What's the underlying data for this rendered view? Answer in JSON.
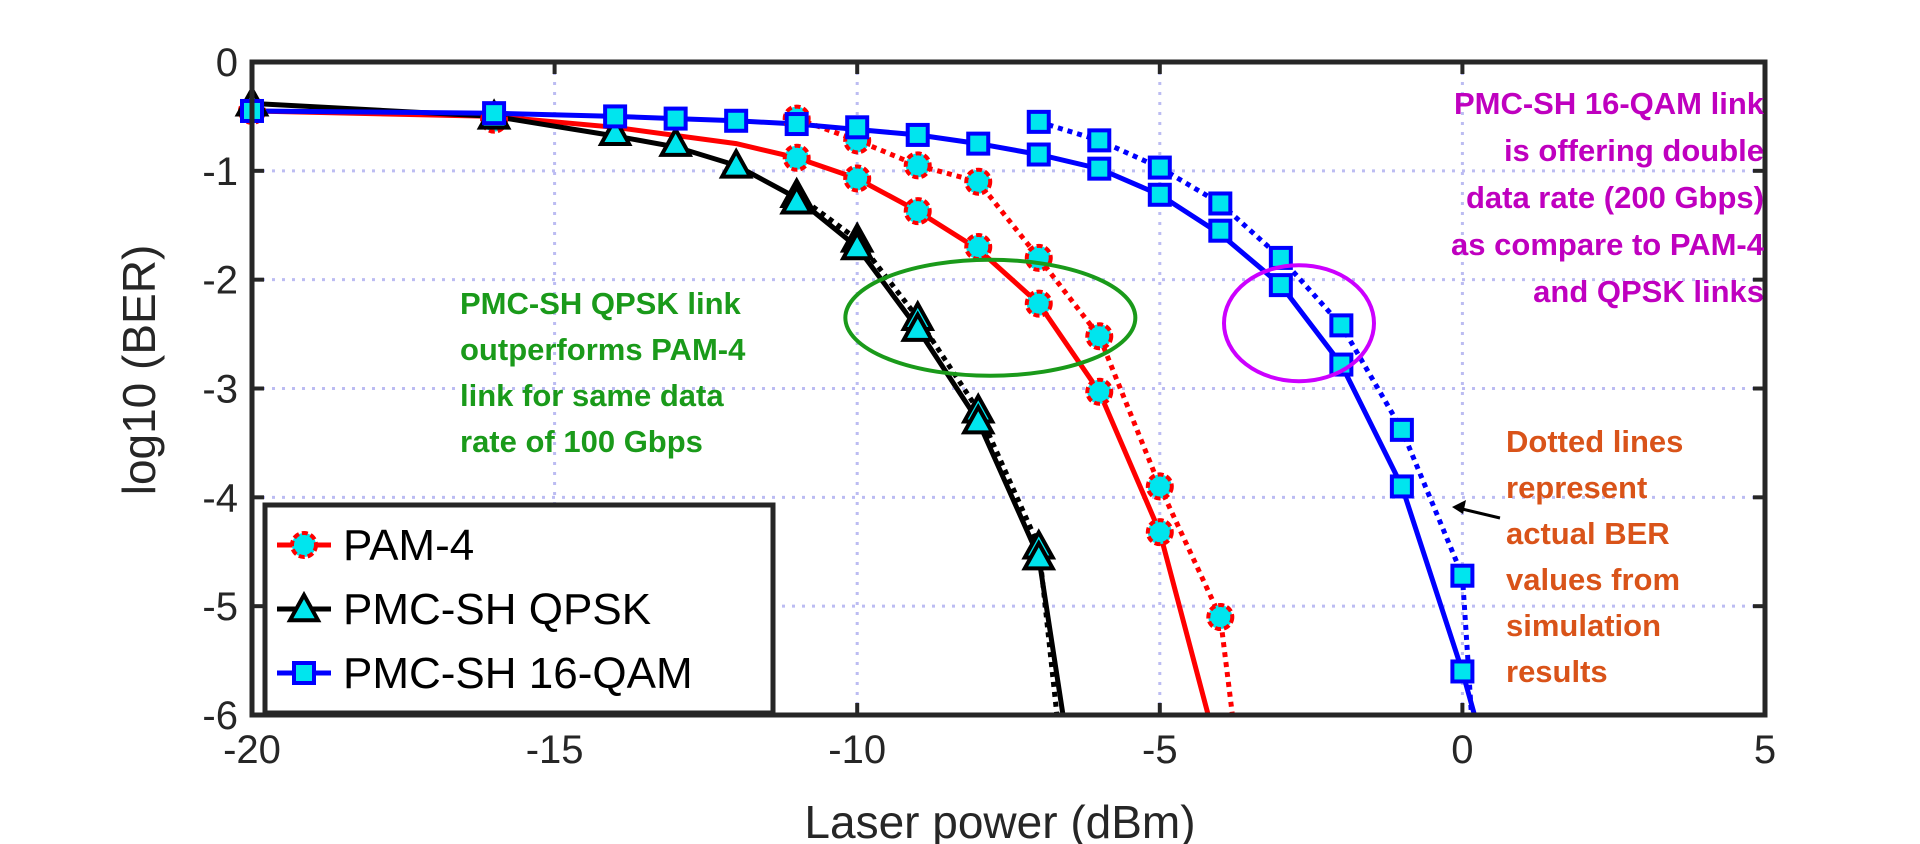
{
  "chart_data": {
    "type": "line",
    "xlabel": "Laser power (dBm)",
    "ylabel": "log10 (BER)",
    "xlim": [
      -20,
      5
    ],
    "ylim": [
      -6,
      0
    ],
    "xticks": [
      -20,
      -15,
      -10,
      -5,
      0,
      5
    ],
    "xtick_labels": [
      "-20",
      "-15",
      "-10",
      "-5",
      "0",
      "5"
    ],
    "yticks": [
      0,
      -1,
      -2,
      -3,
      -4,
      -5,
      -6
    ],
    "ytick_labels": [
      "0",
      "-1",
      "-2",
      "-3",
      "-4",
      "-5",
      "-6"
    ],
    "grid": true,
    "legend_position": "bottom-left",
    "series": [
      {
        "name": "PAM-4",
        "color": "#ff0000",
        "marker": "circle",
        "marker_fill": "#00e5ee",
        "fit": {
          "x": [
            -20,
            -16,
            -14,
            -12,
            -11,
            -10,
            -9,
            -8,
            -7,
            -6,
            -5,
            -4.2
          ],
          "y": [
            -0.45,
            -0.5,
            -0.6,
            -0.75,
            -0.88,
            -1.07,
            -1.37,
            -1.72,
            -2.22,
            -3.03,
            -4.32,
            -6.0
          ]
        },
        "markers": {
          "x": [
            -20,
            -16,
            -11,
            -10,
            -9,
            -8,
            -7,
            -6,
            -5
          ],
          "y": [
            -0.45,
            -0.53,
            -0.88,
            -1.07,
            -1.37,
            -1.7,
            -2.22,
            -3.03,
            -4.32
          ]
        },
        "actual": {
          "x": [
            -11,
            -10,
            -9,
            -8,
            -7,
            -6,
            -5,
            -4,
            -3.8
          ],
          "y": [
            -0.52,
            -0.72,
            -0.95,
            -1.1,
            -1.8,
            -2.52,
            -3.9,
            -5.1,
            -6.0
          ]
        }
      },
      {
        "name": "PMC-SH QPSK",
        "color": "#000000",
        "marker": "triangle",
        "marker_fill": "#00e5ee",
        "fit": {
          "x": [
            -20,
            -16,
            -14,
            -13,
            -12,
            -11,
            -10,
            -9,
            -8,
            -7,
            -6.6
          ],
          "y": [
            -0.38,
            -0.5,
            -0.68,
            -0.78,
            -0.95,
            -1.25,
            -1.7,
            -2.45,
            -3.3,
            -4.55,
            -6.0
          ]
        },
        "markers": {
          "x": [
            -20,
            -16,
            -14,
            -13,
            -12,
            -11,
            -10,
            -9,
            -8,
            -7
          ],
          "y": [
            -0.38,
            -0.5,
            -0.65,
            -0.75,
            -0.95,
            -1.28,
            -1.7,
            -2.45,
            -3.3,
            -4.55
          ]
        },
        "actual": {
          "x": [
            -11,
            -10,
            -9,
            -8,
            -7,
            -6.7
          ],
          "y": [
            -1.22,
            -1.63,
            -2.35,
            -3.2,
            -4.45,
            -6.0
          ]
        }
      },
      {
        "name": "PMC-SH 16-QAM",
        "color": "#0000ff",
        "marker": "square",
        "marker_fill": "#00e5ee",
        "fit": {
          "x": [
            -20,
            -16,
            -14,
            -13,
            -12,
            -11,
            -10,
            -9,
            -8,
            -7,
            -6,
            -5,
            -4,
            -3,
            -2,
            -1,
            0,
            0.2
          ],
          "y": [
            -0.45,
            -0.47,
            -0.5,
            -0.52,
            -0.54,
            -0.57,
            -0.62,
            -0.67,
            -0.75,
            -0.85,
            -0.98,
            -1.22,
            -1.58,
            -2.05,
            -2.78,
            -3.9,
            -5.6,
            -6.0
          ]
        },
        "markers": {
          "x": [
            -20,
            -16,
            -14,
            -13,
            -12,
            -11,
            -10,
            -9,
            -8,
            -7,
            -6,
            -5,
            -4,
            -3,
            -2,
            -1,
            0
          ],
          "y": [
            -0.45,
            -0.47,
            -0.5,
            -0.52,
            -0.54,
            -0.57,
            -0.6,
            -0.67,
            -0.75,
            -0.85,
            -0.98,
            -1.22,
            -1.55,
            -2.05,
            -2.78,
            -3.9,
            -5.6
          ]
        },
        "actual": {
          "x": [
            -7,
            -6,
            -5,
            -4,
            -3,
            -2,
            -1,
            0,
            0.15
          ],
          "y": [
            -0.55,
            -0.72,
            -0.97,
            -1.3,
            -1.8,
            -2.42,
            -3.38,
            -4.72,
            -6.0
          ]
        }
      }
    ],
    "annotations": [
      {
        "lines": [
          "PMC-SH QPSK link",
          "outperforms PAM-4",
          "link for same data",
          "rate of 100 Gbps"
        ],
        "color": "#1a9a1a",
        "align": "start"
      },
      {
        "lines": [
          "PMC-SH 16-QAM link",
          "is offering double",
          "data rate (200 Gbps)",
          "as compare to PAM-4",
          "and QPSK links"
        ],
        "color": "#bf00bf",
        "align": "end"
      },
      {
        "lines": [
          "Dotted lines",
          "represent",
          "actual BER",
          "values from",
          "simulation",
          "results"
        ],
        "color": "#d95319",
        "align": "start"
      }
    ],
    "highlight_ellipses": [
      {
        "color": "#1a9a1a",
        "cx": -7.8,
        "cy": -2.35
      },
      {
        "color": "#cc00ff",
        "cx": -2.7,
        "cy": -2.4
      }
    ]
  }
}
